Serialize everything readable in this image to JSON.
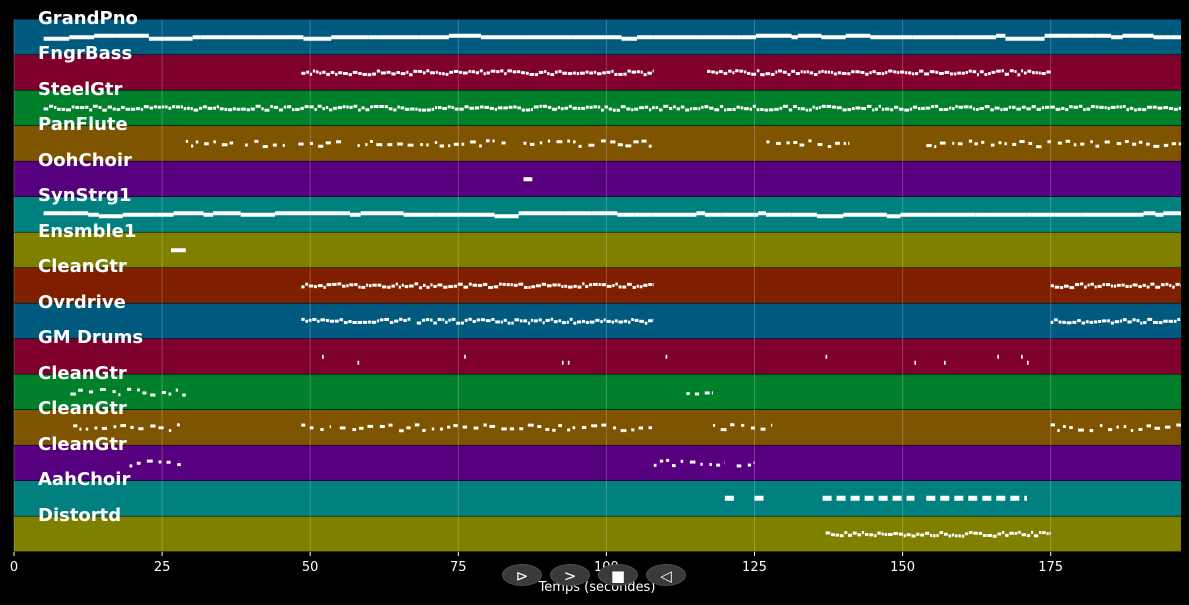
{
  "window": {
    "xlabel": "Temps (secondes)"
  },
  "controls": {
    "play": "⊳",
    "forward": ">",
    "stop": "■",
    "back": "◁"
  },
  "x_ticks": [
    "0",
    "25",
    "50",
    "75",
    "100",
    "125",
    "150",
    "175"
  ],
  "colors": {
    "background": "#000000",
    "note": "#ffffff",
    "track_palette": [
      "#005a80",
      "#80002d",
      "#00802a",
      "#7f5400",
      "#57007f",
      "#00807f",
      "#7f7f00",
      "#801f00"
    ]
  },
  "chart_data": {
    "type": "piano-roll",
    "xlabel": "Temps (secondes)",
    "xlim": [
      0,
      197
    ],
    "x_ticks": [
      0,
      25,
      50,
      75,
      100,
      125,
      150,
      175
    ],
    "grid": true,
    "tracks": [
      {
        "name": "GrandPno",
        "color": "#005a80",
        "segments": [
          [
            5,
            197
          ]
        ],
        "density": "solid"
      },
      {
        "name": "FngrBass",
        "color": "#80002d",
        "segments": [
          [
            48.5,
            108
          ],
          [
            117,
            175
          ]
        ],
        "density": "dense"
      },
      {
        "name": "SteelGtr",
        "color": "#00802a",
        "segments": [
          [
            5,
            197
          ]
        ],
        "density": "dense"
      },
      {
        "name": "PanFlute",
        "color": "#7f5400",
        "segments": [
          [
            29,
            37
          ],
          [
            39,
            46
          ],
          [
            48,
            56
          ],
          [
            58,
            76
          ],
          [
            77,
            83
          ],
          [
            86,
            108
          ],
          [
            127,
            141
          ],
          [
            154,
            197
          ]
        ],
        "density": "sparse"
      },
      {
        "name": "OohChoir",
        "color": "#57007f",
        "segments": [
          [
            86,
            87.5
          ]
        ],
        "density": "dots"
      },
      {
        "name": "SynStrg1",
        "color": "#00807f",
        "segments": [
          [
            5,
            197
          ]
        ],
        "density": "solid"
      },
      {
        "name": "Ensmble1",
        "color": "#7f7f00",
        "segments": [
          [
            26.5,
            29
          ]
        ],
        "density": "solid"
      },
      {
        "name": "CleanGtr",
        "color": "#801f00",
        "segments": [
          [
            48.5,
            108
          ],
          [
            175,
            197
          ]
        ],
        "density": "dense"
      },
      {
        "name": "Ovrdrive",
        "color": "#005a80",
        "segments": [
          [
            48.5,
            67
          ],
          [
            68,
            108
          ],
          [
            175,
            197
          ]
        ],
        "density": "dense"
      },
      {
        "name": "GM Drums",
        "color": "#80002d",
        "hits": [
          52,
          58,
          76,
          92.5,
          93.5,
          110,
          137,
          152,
          157,
          166,
          170,
          171
        ],
        "density": "hits"
      },
      {
        "name": "CleanGtr",
        "color": "#00802a",
        "segments": [
          [
            9.5,
            29
          ],
          [
            113.5,
            118
          ]
        ],
        "density": "sparse"
      },
      {
        "name": "CleanGtr",
        "color": "#7f5400",
        "segments": [
          [
            10,
            29
          ],
          [
            48.5,
            53.5
          ],
          [
            55,
            108
          ],
          [
            118,
            128
          ],
          [
            175,
            197
          ]
        ],
        "density": "sparse"
      },
      {
        "name": "CleanGtr",
        "color": "#57007f",
        "segments": [
          [
            19.5,
            29
          ],
          [
            108,
            120
          ],
          [
            122,
            125
          ]
        ],
        "density": "sparse"
      },
      {
        "name": "AahChoir",
        "color": "#00807f",
        "segments": [
          [
            120,
            122
          ],
          [
            125,
            127
          ],
          [
            136.5,
            152
          ],
          [
            154,
            171
          ]
        ],
        "density": "blocks"
      },
      {
        "name": "Distortd",
        "color": "#7f7f00",
        "segments": [
          [
            137,
            175
          ]
        ],
        "density": "dense"
      }
    ]
  }
}
